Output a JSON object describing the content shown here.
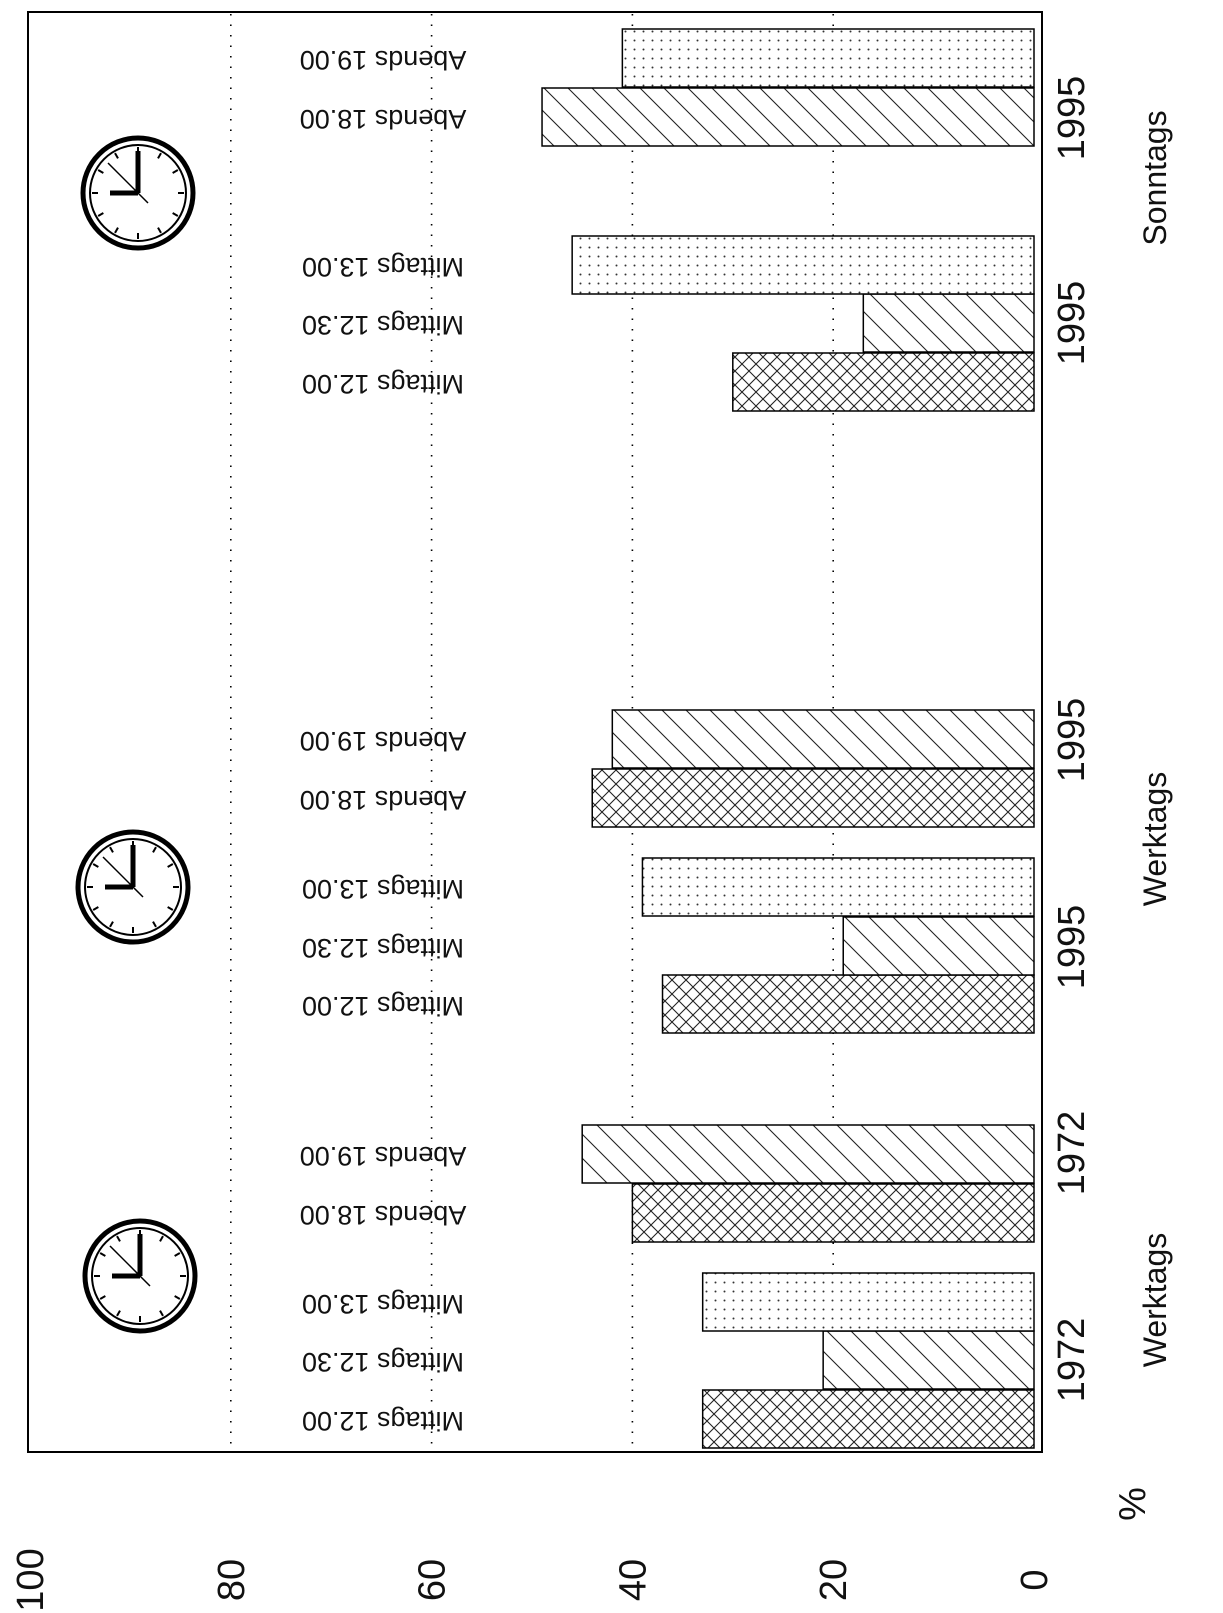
{
  "chart_data": {
    "type": "bar",
    "orientation": "horizontal-rotated",
    "ylabel": "%",
    "ylim": [
      0,
      100
    ],
    "yticks": [
      "0",
      "20",
      "40",
      "60",
      "80",
      "100"
    ],
    "grid": "dotted at 20, 40, 60, 80",
    "bars": [
      {
        "label": "Mittags 12.00",
        "value": 33,
        "pattern": "crosshatch"
      },
      {
        "label": "Mittags 12.30",
        "value": 21,
        "pattern": "diagonal"
      },
      {
        "label": "Mittags 13.00",
        "value": 33,
        "pattern": "dots"
      },
      {
        "label": "Abends 18.00",
        "value": 40,
        "pattern": "crosshatch"
      },
      {
        "label": "Abends 19.00",
        "value": 45,
        "pattern": "diagonal"
      },
      {
        "label": "Mittags 12.00",
        "value": 37,
        "pattern": "crosshatch"
      },
      {
        "label": "Mittags 12.30",
        "value": 19,
        "pattern": "diagonal"
      },
      {
        "label": "Mittags 13.00",
        "value": 39,
        "pattern": "dots"
      },
      {
        "label": "Abends 18.00",
        "value": 44,
        "pattern": "crosshatch"
      },
      {
        "label": "Abends 19.00",
        "value": 42,
        "pattern": "diagonal"
      },
      {
        "label": "Mittags 12.00",
        "value": 30,
        "pattern": "crosshatch"
      },
      {
        "label": "Mittags 12.30",
        "value": 17,
        "pattern": "diagonal"
      },
      {
        "label": "Mittags 13.00",
        "value": 46,
        "pattern": "dots"
      },
      {
        "label": "Abends 18.00",
        "value": 49,
        "pattern": "diagonal"
      },
      {
        "label": "Abends 19.00",
        "value": 41,
        "pattern": "dots"
      }
    ],
    "year_labels": [
      "1972",
      "1972",
      "1995",
      "1995",
      "1995",
      "1995"
    ],
    "group_labels": [
      "Werktags",
      "Werktags",
      "Sonntags"
    ],
    "icons": [
      "clock-icon",
      "clock-icon",
      "clock-icon"
    ]
  }
}
